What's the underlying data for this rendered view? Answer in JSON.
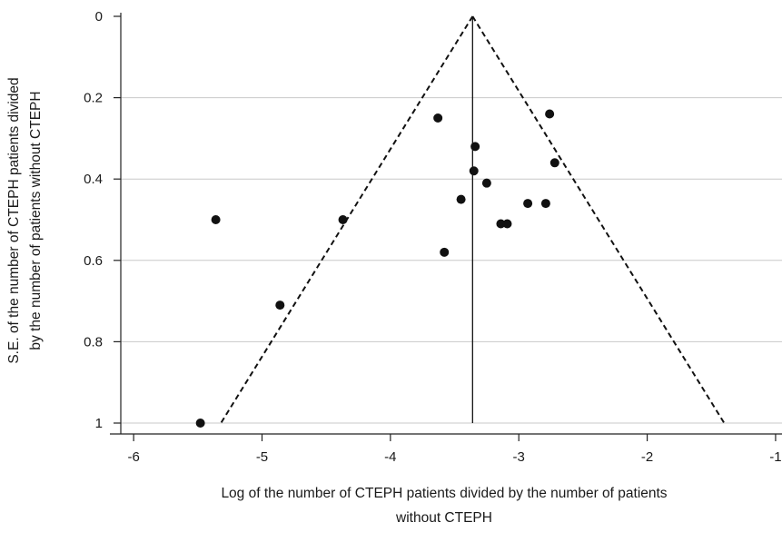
{
  "chart_data": {
    "type": "scatter",
    "title": "",
    "xlabel_lines": [
      "Log of the number of CTEPH patients divided by the number of patients",
      "without CTEPH"
    ],
    "ylabel_lines": [
      "S.E. of the number of CTEPH patients divided",
      "by the number of patients without CTEPH"
    ],
    "xlim": [
      -6.1,
      -0.95
    ],
    "ylim": [
      0,
      1.0
    ],
    "y_inverted": true,
    "x_ticks": [
      -6,
      -5,
      -4,
      -3,
      -2,
      -1
    ],
    "y_ticks": [
      0,
      0.2,
      0.4,
      0.6,
      0.8,
      1
    ],
    "y_tick_labels": [
      "0",
      "0.2",
      "0.4",
      "0.6",
      "0.8",
      "1"
    ],
    "x_tick_labels": [
      "-6",
      "-5",
      "-4",
      "-3",
      "-2",
      "-1"
    ],
    "grid": "horizontal",
    "pooled_estimate": -3.36,
    "funnel": {
      "apex": [
        -3.36,
        0
      ],
      "left_base": [
        -5.32,
        1.0
      ],
      "right_base": [
        -1.4,
        1.0
      ]
    },
    "points": [
      {
        "x": -5.48,
        "y": 1.0
      },
      {
        "x": -5.36,
        "y": 0.5
      },
      {
        "x": -4.86,
        "y": 0.71
      },
      {
        "x": -4.37,
        "y": 0.5
      },
      {
        "x": -3.63,
        "y": 0.25
      },
      {
        "x": -3.58,
        "y": 0.58
      },
      {
        "x": -3.45,
        "y": 0.45
      },
      {
        "x": -3.34,
        "y": 0.32
      },
      {
        "x": -3.35,
        "y": 0.38
      },
      {
        "x": -3.25,
        "y": 0.41
      },
      {
        "x": -3.14,
        "y": 0.51
      },
      {
        "x": -3.09,
        "y": 0.51
      },
      {
        "x": -2.93,
        "y": 0.46
      },
      {
        "x": -2.79,
        "y": 0.46
      },
      {
        "x": -2.76,
        "y": 0.24
      },
      {
        "x": -2.72,
        "y": 0.36
      }
    ]
  },
  "colors": {
    "marker": "#111111",
    "grid": "#c8c8c8",
    "axis": "#222222",
    "funnel": "#111111"
  }
}
